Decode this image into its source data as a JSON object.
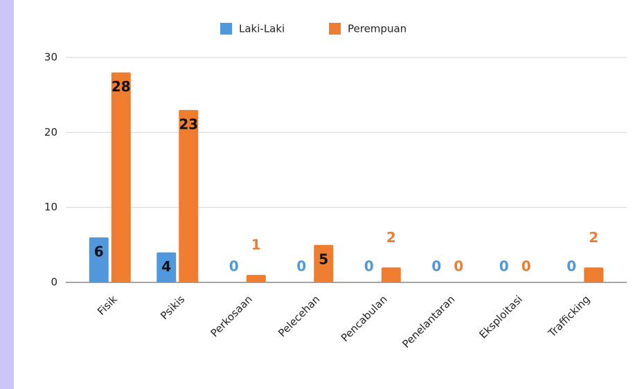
{
  "chart_data": {
    "type": "bar",
    "categories": [
      "Fisik",
      "Psikis",
      "Perkosaan",
      "Pelecehan",
      "Pencabulan",
      "Penelantaran",
      "Eksploitasi",
      "Trafficking"
    ],
    "series": [
      {
        "name": "Laki-Laki",
        "color": "#5197dc",
        "values": [
          6,
          4,
          0,
          0,
          0,
          0,
          0,
          0
        ]
      },
      {
        "name": "Perempuan",
        "color": "#ee7d30",
        "values": [
          28,
          23,
          1,
          5,
          2,
          0,
          0,
          2
        ]
      }
    ],
    "ylim": [
      0,
      30
    ],
    "yticks": [
      0,
      10,
      20,
      30
    ],
    "grid": true,
    "legend": "top"
  }
}
